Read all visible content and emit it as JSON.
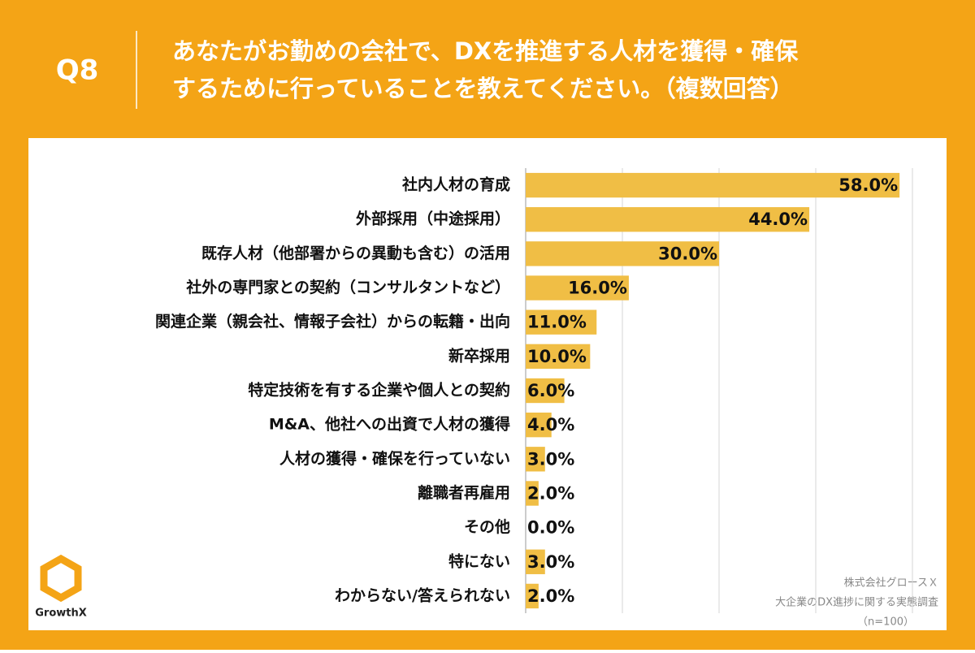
{
  "chart_data": {
    "type": "bar",
    "orientation": "horizontal",
    "question": "Q8",
    "title_lines": [
      "あなたがお勤めの会社で、DXを推進する人材を獲得・確保",
      "するために行っていることを教えてください。（複数回答）"
    ],
    "categories": [
      "社内人材の育成",
      "外部採用（中途採用）",
      "既存人材（他部署からの異動も含む）の活用",
      "社外の専門家との契約（コンサルタントなど）",
      "関連企業（親会社、情報子会社）からの転籍・出向",
      "新卒採用",
      "特定技術を有する企業や個人との契約",
      "M&A、他社への出資で人材の獲得",
      "人材の獲得・確保を行っていない",
      "離職者再雇用",
      "その他",
      "特にない",
      "わからない/答えられない"
    ],
    "values": [
      58,
      44,
      30,
      16,
      11,
      10,
      6,
      4,
      3,
      2,
      0,
      3,
      2
    ],
    "value_labels": [
      "58.0%",
      "44.0%",
      "30.0%",
      "16.0%",
      "11.0%",
      "10.0%",
      "6.0%",
      "4.0%",
      "3.0%",
      "2.0%",
      "0.0%",
      "3.0%",
      "2.0%"
    ],
    "color": "#f0be45",
    "xlim": [
      0,
      60
    ],
    "xticks": [
      0,
      15,
      30,
      45,
      60
    ],
    "grid": true,
    "source_lines": [
      "株式会社グロースＸ",
      "大企業のDX進捗に関する実態調査",
      "（n=100）"
    ],
    "logo": "GrowthX"
  }
}
